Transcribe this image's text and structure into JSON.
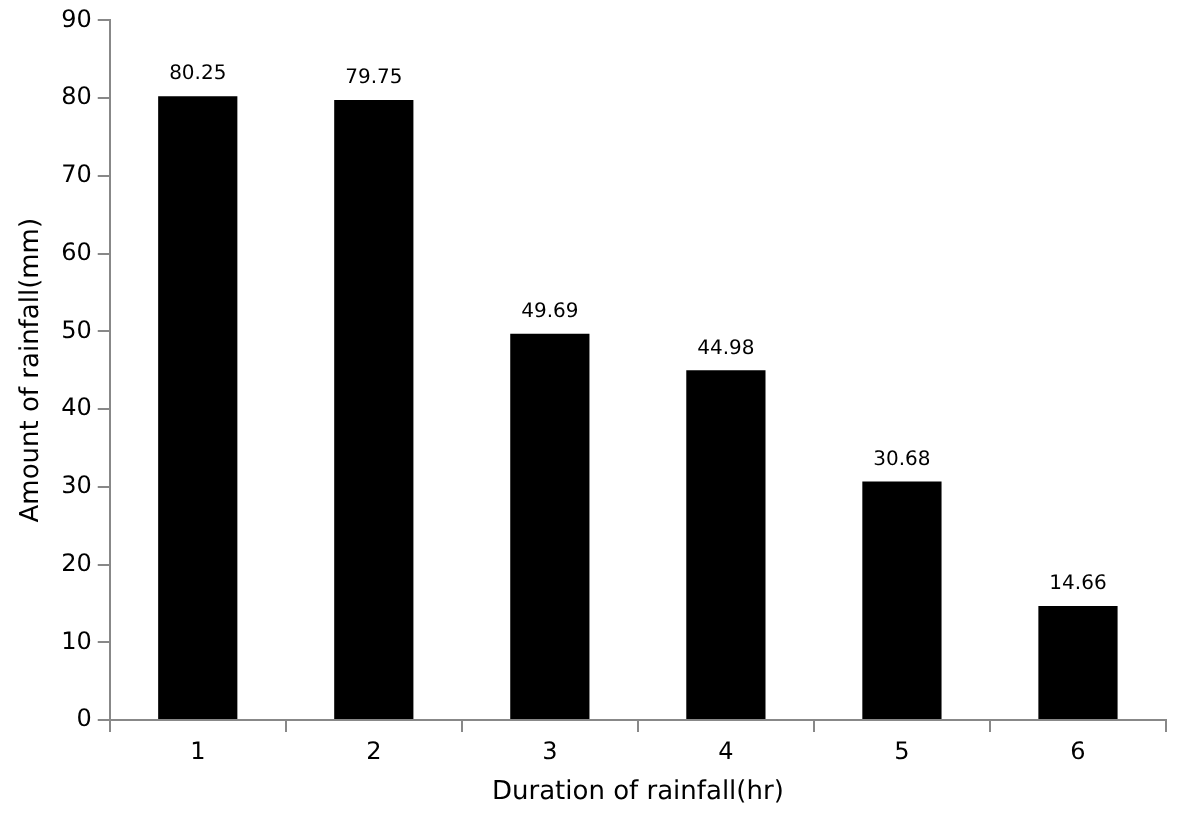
{
  "chart_data": {
    "type": "bar",
    "xlabel": "Duration of rainfall(hr)",
    "ylabel": "Amount of rainfall(mm)",
    "categories": [
      "1",
      "2",
      "3",
      "4",
      "5",
      "6"
    ],
    "values": [
      80.25,
      79.75,
      49.69,
      44.98,
      30.68,
      14.66
    ],
    "color": "#000000",
    "ylim": [
      0,
      90
    ],
    "yticks": [
      0,
      10,
      20,
      30,
      40,
      50,
      60,
      70,
      80,
      90
    ],
    "grid": false,
    "legend": false,
    "data_labels": true
  }
}
